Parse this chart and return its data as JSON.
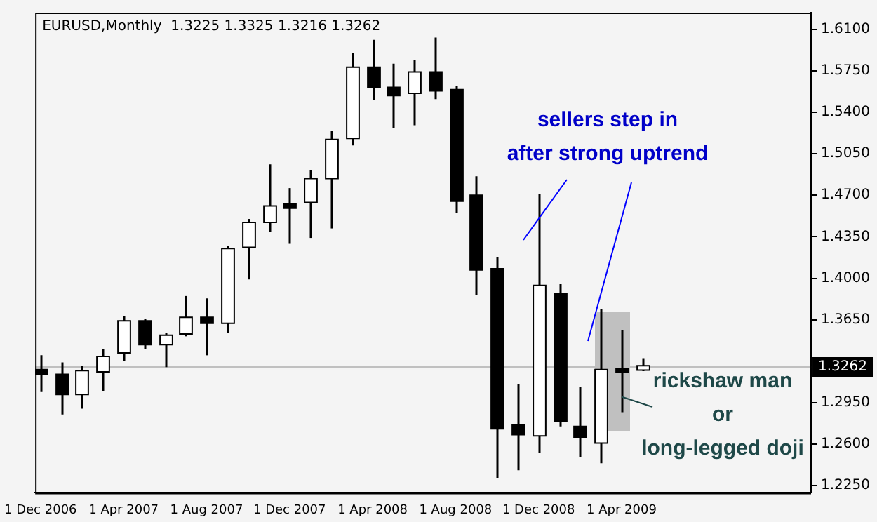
{
  "chart_data": {
    "type": "candlestick",
    "title": "EURUSD,Monthly  1.3225 1.3325 1.3216 1.3262",
    "x": [
      "2006-12",
      "2007-01",
      "2007-02",
      "2007-03",
      "2007-04",
      "2007-05",
      "2007-06",
      "2007-07",
      "2007-08",
      "2007-09",
      "2007-10",
      "2007-11",
      "2007-12",
      "2008-01",
      "2008-02",
      "2008-03",
      "2008-04",
      "2008-05",
      "2008-06",
      "2008-07",
      "2008-08",
      "2008-09",
      "2008-10",
      "2008-11",
      "2008-12",
      "2009-01",
      "2009-02",
      "2009-03",
      "2009-04",
      "2009-05"
    ],
    "ohlc": [
      [
        1.323,
        1.335,
        1.304,
        1.319
      ],
      [
        1.319,
        1.329,
        1.285,
        1.302
      ],
      [
        1.302,
        1.326,
        1.29,
        1.322
      ],
      [
        1.321,
        1.34,
        1.305,
        1.334
      ],
      [
        1.337,
        1.368,
        1.33,
        1.364
      ],
      [
        1.364,
        1.366,
        1.34,
        1.344
      ],
      [
        1.344,
        1.354,
        1.325,
        1.352
      ],
      [
        1.353,
        1.385,
        1.351,
        1.367
      ],
      [
        1.367,
        1.383,
        1.335,
        1.362
      ],
      [
        1.362,
        1.427,
        1.354,
        1.425
      ],
      [
        1.426,
        1.45,
        1.399,
        1.447
      ],
      [
        1.447,
        1.496,
        1.439,
        1.461
      ],
      [
        1.463,
        1.476,
        1.429,
        1.459
      ],
      [
        1.464,
        1.491,
        1.434,
        1.484
      ],
      [
        1.484,
        1.524,
        1.442,
        1.517
      ],
      [
        1.518,
        1.59,
        1.512,
        1.578
      ],
      [
        1.578,
        1.601,
        1.55,
        1.561
      ],
      [
        1.561,
        1.581,
        1.527,
        1.554
      ],
      [
        1.556,
        1.584,
        1.529,
        1.574
      ],
      [
        1.574,
        1.603,
        1.551,
        1.558
      ],
      [
        1.559,
        1.562,
        1.455,
        1.465
      ],
      [
        1.47,
        1.486,
        1.386,
        1.407
      ],
      [
        1.408,
        1.418,
        1.231,
        1.273
      ],
      [
        1.276,
        1.311,
        1.238,
        1.268
      ],
      [
        1.267,
        1.471,
        1.253,
        1.394
      ],
      [
        1.387,
        1.395,
        1.275,
        1.279
      ],
      [
        1.275,
        1.308,
        1.249,
        1.266
      ],
      [
        1.261,
        1.374,
        1.244,
        1.323
      ],
      [
        1.324,
        1.356,
        1.287,
        1.321
      ],
      [
        1.3225,
        1.3325,
        1.3216,
        1.3262
      ]
    ],
    "xlim": [
      "2006-11-24",
      "2010-01-05"
    ],
    "xticks": [
      {
        "value": "2006-12-01",
        "label": "1 Dec 2006"
      },
      {
        "value": "2007-04-01",
        "label": "1 Apr 2007"
      },
      {
        "value": "2007-08-01",
        "label": "1 Aug 2007"
      },
      {
        "value": "2007-12-01",
        "label": "1 Dec 2007"
      },
      {
        "value": "2008-04-01",
        "label": "1 Apr 2008"
      },
      {
        "value": "2008-08-01",
        "label": "1 Aug 2008"
      },
      {
        "value": "2008-12-01",
        "label": "1 Dec 2008"
      },
      {
        "value": "2009-04-01",
        "label": "1 Apr 2009"
      }
    ],
    "ylim": [
      1.219,
      1.624
    ],
    "yticks": [
      {
        "value": 1.225,
        "label": "1.2250"
      },
      {
        "value": 1.26,
        "label": "1.2600"
      },
      {
        "value": 1.295,
        "label": "1.2950"
      },
      {
        "value": 1.365,
        "label": "1.3650"
      },
      {
        "value": 1.4,
        "label": "1.4000"
      },
      {
        "value": 1.435,
        "label": "1.4350"
      },
      {
        "value": 1.47,
        "label": "1.4700"
      },
      {
        "value": 1.505,
        "label": "1.5050"
      },
      {
        "value": 1.54,
        "label": "1.5400"
      },
      {
        "value": 1.575,
        "label": "1.5750"
      },
      {
        "value": 1.61,
        "label": "1.6100"
      }
    ],
    "ref_lines": [
      {
        "axis": "y",
        "value": 1.3262,
        "label": "1.3262",
        "color": "#c0c0c0"
      }
    ],
    "annotations": [
      "sellers step in\nafter strong uptrend",
      {
        "text": "rickshaw man\nor\nlong-legged doji",
        "x": "2009-04",
        "y": 1.3
      }
    ],
    "legend": false
  }
}
